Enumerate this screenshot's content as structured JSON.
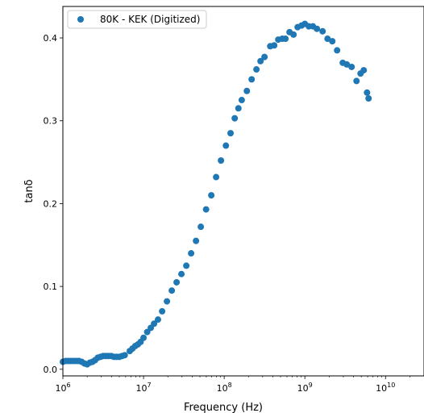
{
  "chart_data": {
    "type": "scatter",
    "xlabel": "Frequency (Hz)",
    "ylabel": "tanδ",
    "xscale": "log",
    "xlim": [
      1000000,
      30000000000
    ],
    "ylim": [
      -0.008,
      0.438
    ],
    "xticks": [
      {
        "value": 1000000,
        "base": "10",
        "exp": "6"
      },
      {
        "value": 10000000,
        "base": "10",
        "exp": "7"
      },
      {
        "value": 100000000,
        "base": "10",
        "exp": "8"
      },
      {
        "value": 1000000000,
        "base": "10",
        "exp": "9"
      },
      {
        "value": 10000000000,
        "base": "10",
        "exp": "10"
      }
    ],
    "yticks": [
      {
        "value": 0.0,
        "label": "0.0"
      },
      {
        "value": 0.1,
        "label": "0.1"
      },
      {
        "value": 0.2,
        "label": "0.2"
      },
      {
        "value": 0.3,
        "label": "0.3"
      },
      {
        "value": 0.4,
        "label": "0.4"
      }
    ],
    "grid": false,
    "legend_position": "top-left",
    "series": [
      {
        "name": "80K - KEK (Digitized)",
        "color": "#1f77b4",
        "points": [
          [
            1000000,
            0.009
          ],
          [
            1080000,
            0.01
          ],
          [
            1170000,
            0.01
          ],
          [
            1260000,
            0.01
          ],
          [
            1360000,
            0.01
          ],
          [
            1470000,
            0.01
          ],
          [
            1580000,
            0.01
          ],
          [
            1710000,
            0.009
          ],
          [
            1850000,
            0.007
          ],
          [
            2000000,
            0.006
          ],
          [
            2160000,
            0.008
          ],
          [
            2330000,
            0.009
          ],
          [
            2510000,
            0.011
          ],
          [
            2710000,
            0.014
          ],
          [
            2930000,
            0.015
          ],
          [
            3160000,
            0.016
          ],
          [
            3410000,
            0.016
          ],
          [
            3680000,
            0.016
          ],
          [
            3980000,
            0.016
          ],
          [
            4300000,
            0.015
          ],
          [
            4640000,
            0.015
          ],
          [
            5010000,
            0.015
          ],
          [
            5410000,
            0.016
          ],
          [
            5840000,
            0.017
          ],
          [
            6750000,
            0.022
          ],
          [
            7290000,
            0.025
          ],
          [
            7880000,
            0.028
          ],
          [
            8510000,
            0.03
          ],
          [
            9190000,
            0.033
          ],
          [
            10000000,
            0.038
          ],
          [
            11100000,
            0.045
          ],
          [
            12300000,
            0.05
          ],
          [
            13500000,
            0.055
          ],
          [
            15100000,
            0.06
          ],
          [
            17000000,
            0.07
          ],
          [
            19500000,
            0.082
          ],
          [
            22400000,
            0.095
          ],
          [
            25700000,
            0.105
          ],
          [
            29500000,
            0.115
          ],
          [
            33900000,
            0.125
          ],
          [
            38900000,
            0.14
          ],
          [
            44700000,
            0.155
          ],
          [
            51300000,
            0.172
          ],
          [
            59600000,
            0.193
          ],
          [
            69200000,
            0.21
          ],
          [
            79400000,
            0.232
          ],
          [
            91200000,
            0.252
          ],
          [
            105000000,
            0.27
          ],
          [
            120000000,
            0.285
          ],
          [
            135000000,
            0.303
          ],
          [
            150000000,
            0.315
          ],
          [
            165000000,
            0.325
          ],
          [
            191000000,
            0.336
          ],
          [
            219000000,
            0.35
          ],
          [
            251000000,
            0.362
          ],
          [
            282000000,
            0.372
          ],
          [
            316000000,
            0.377
          ],
          [
            372000000,
            0.39
          ],
          [
            417000000,
            0.391
          ],
          [
            468000000,
            0.398
          ],
          [
            525000000,
            0.399
          ],
          [
            575000000,
            0.399
          ],
          [
            646000000,
            0.407
          ],
          [
            724000000,
            0.404
          ],
          [
            813000000,
            0.413
          ],
          [
            912000000,
            0.415
          ],
          [
            1000000000,
            0.417
          ],
          [
            1120000000,
            0.414
          ],
          [
            1260000000,
            0.414
          ],
          [
            1410000000,
            0.411
          ],
          [
            1660000000,
            0.408
          ],
          [
            1910000000,
            0.399
          ],
          [
            2190000000,
            0.396
          ],
          [
            2510000000,
            0.385
          ],
          [
            2950000000,
            0.37
          ],
          [
            3310000000,
            0.368
          ],
          [
            3800000000,
            0.365
          ],
          [
            4370000000,
            0.348
          ],
          [
            4900000000,
            0.357
          ],
          [
            5370000000,
            0.361
          ],
          [
            5900000000,
            0.334
          ],
          [
            6160000000,
            0.327
          ]
        ]
      }
    ]
  }
}
